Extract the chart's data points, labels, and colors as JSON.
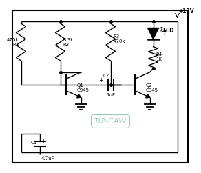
{
  "bg_color": "#ffffff",
  "line_color": "#000000",
  "watermark_text": "TI2-CAW",
  "watermark_color": "#99ccbb",
  "vcc_label": "+12V",
  "led_label": "LED",
  "r1_label": "470k\nR1",
  "r2_label": "3.3k\nR2",
  "r3_label": "R3\n470k",
  "r4_label": "R4\n1K",
  "q1_label": "Q1\nC945",
  "q2_label": "Q2\nC945",
  "c1_label": "C1",
  "c1_val": "4.7uF",
  "c2_label": "C2",
  "c2_val": "1uF"
}
